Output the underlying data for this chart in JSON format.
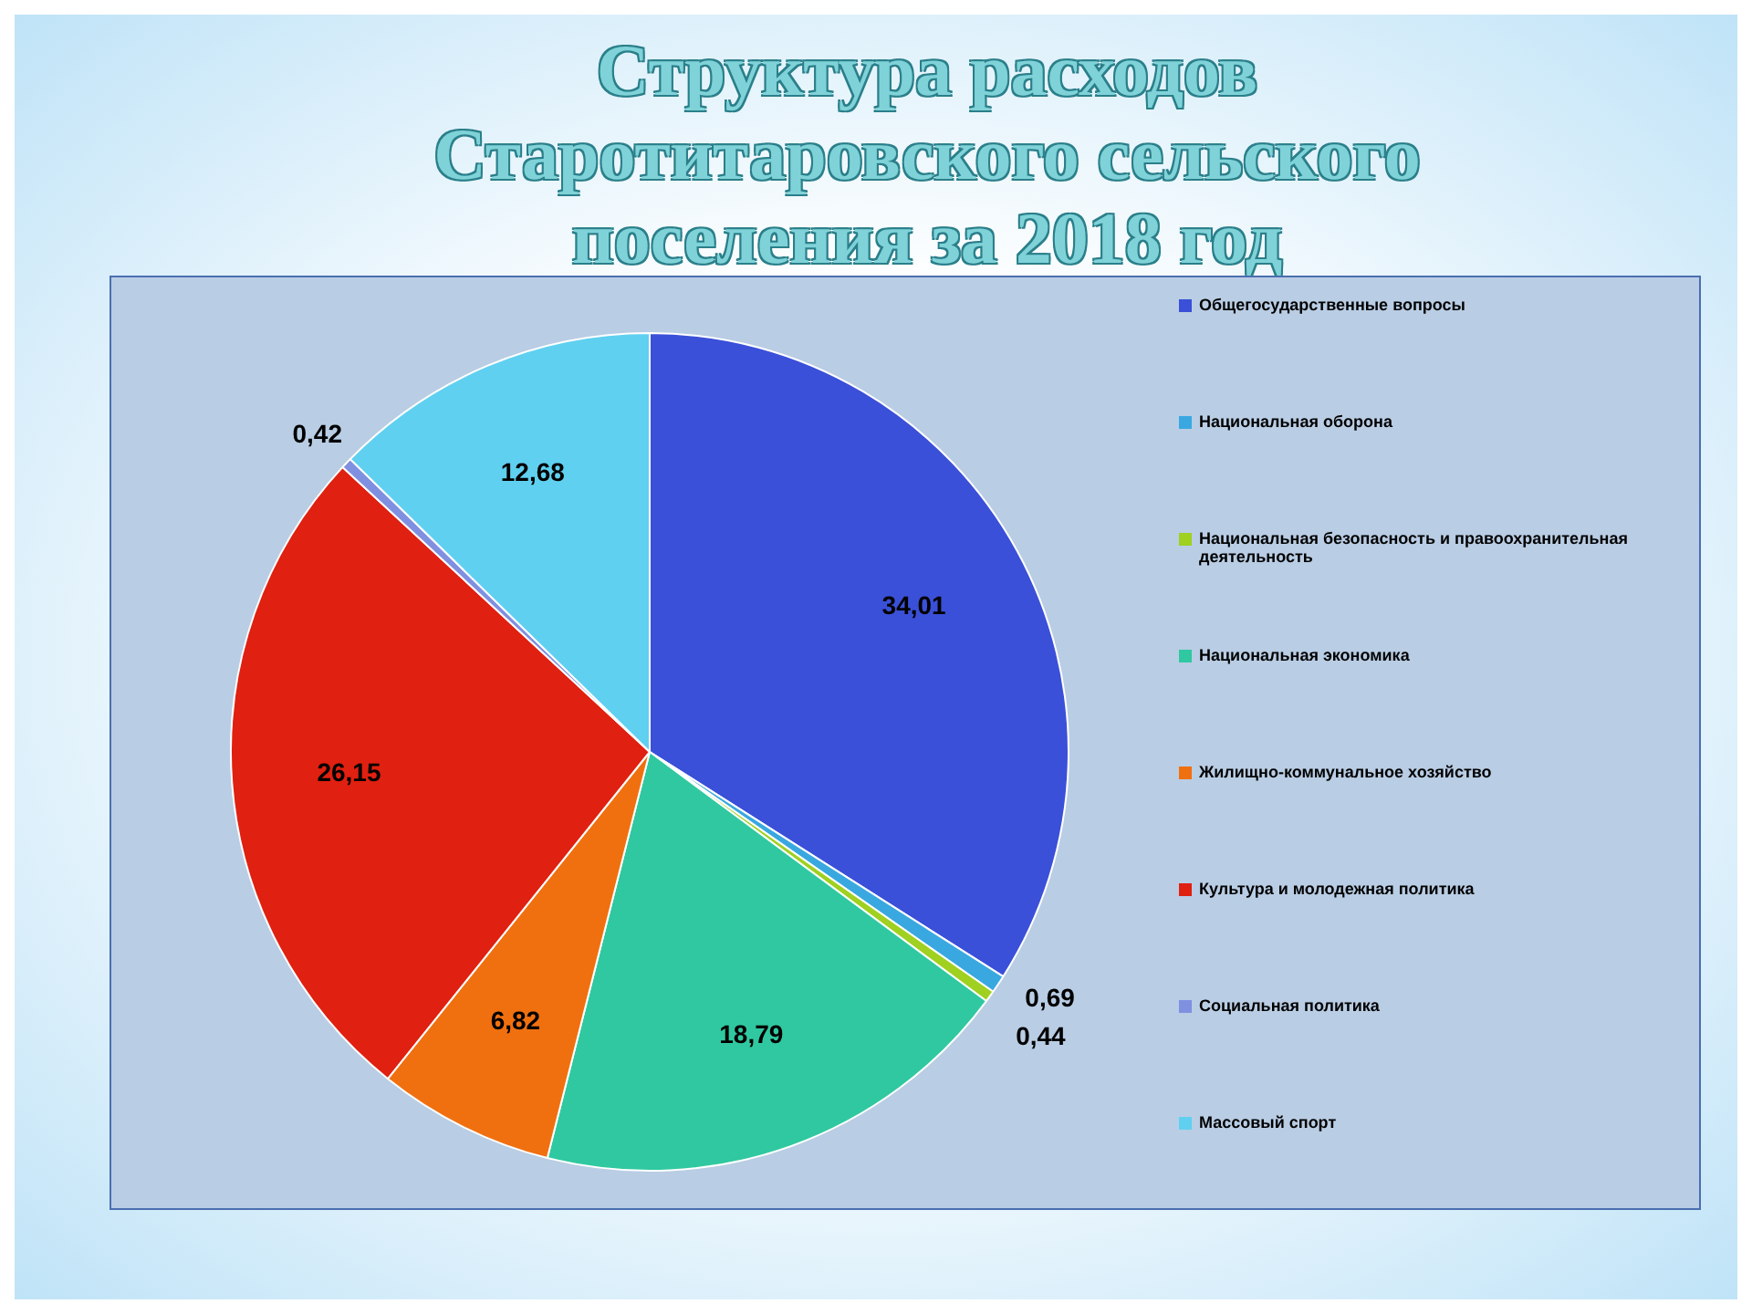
{
  "chart_data": {
    "type": "pie",
    "title": "Структура расходов Старотитаровского сельского поселения за 2018 год",
    "categories": [
      "Общегосударственные вопросы",
      "Национальная оборона",
      "Национальная безопасность и правоохранительная деятельность",
      "Национальная экономика",
      "Жилищно-коммунальное хозяйство",
      "Культура и молодежная политика",
      "Социальная политика",
      "Массовый спорт"
    ],
    "values": [
      34.01,
      0.69,
      0.44,
      18.79,
      6.82,
      26.15,
      0.42,
      12.68
    ],
    "value_labels": [
      "34,01",
      "0,69",
      "0,44",
      "18,79",
      "6,82",
      "26,15",
      "0,42",
      "12,68"
    ],
    "colors": [
      "#3a50d8",
      "#3aa8e0",
      "#a0d020",
      "#30c8a0",
      "#f07010",
      "#e02010",
      "#8090e0",
      "#60d0f0"
    ],
    "legend": "right"
  }
}
